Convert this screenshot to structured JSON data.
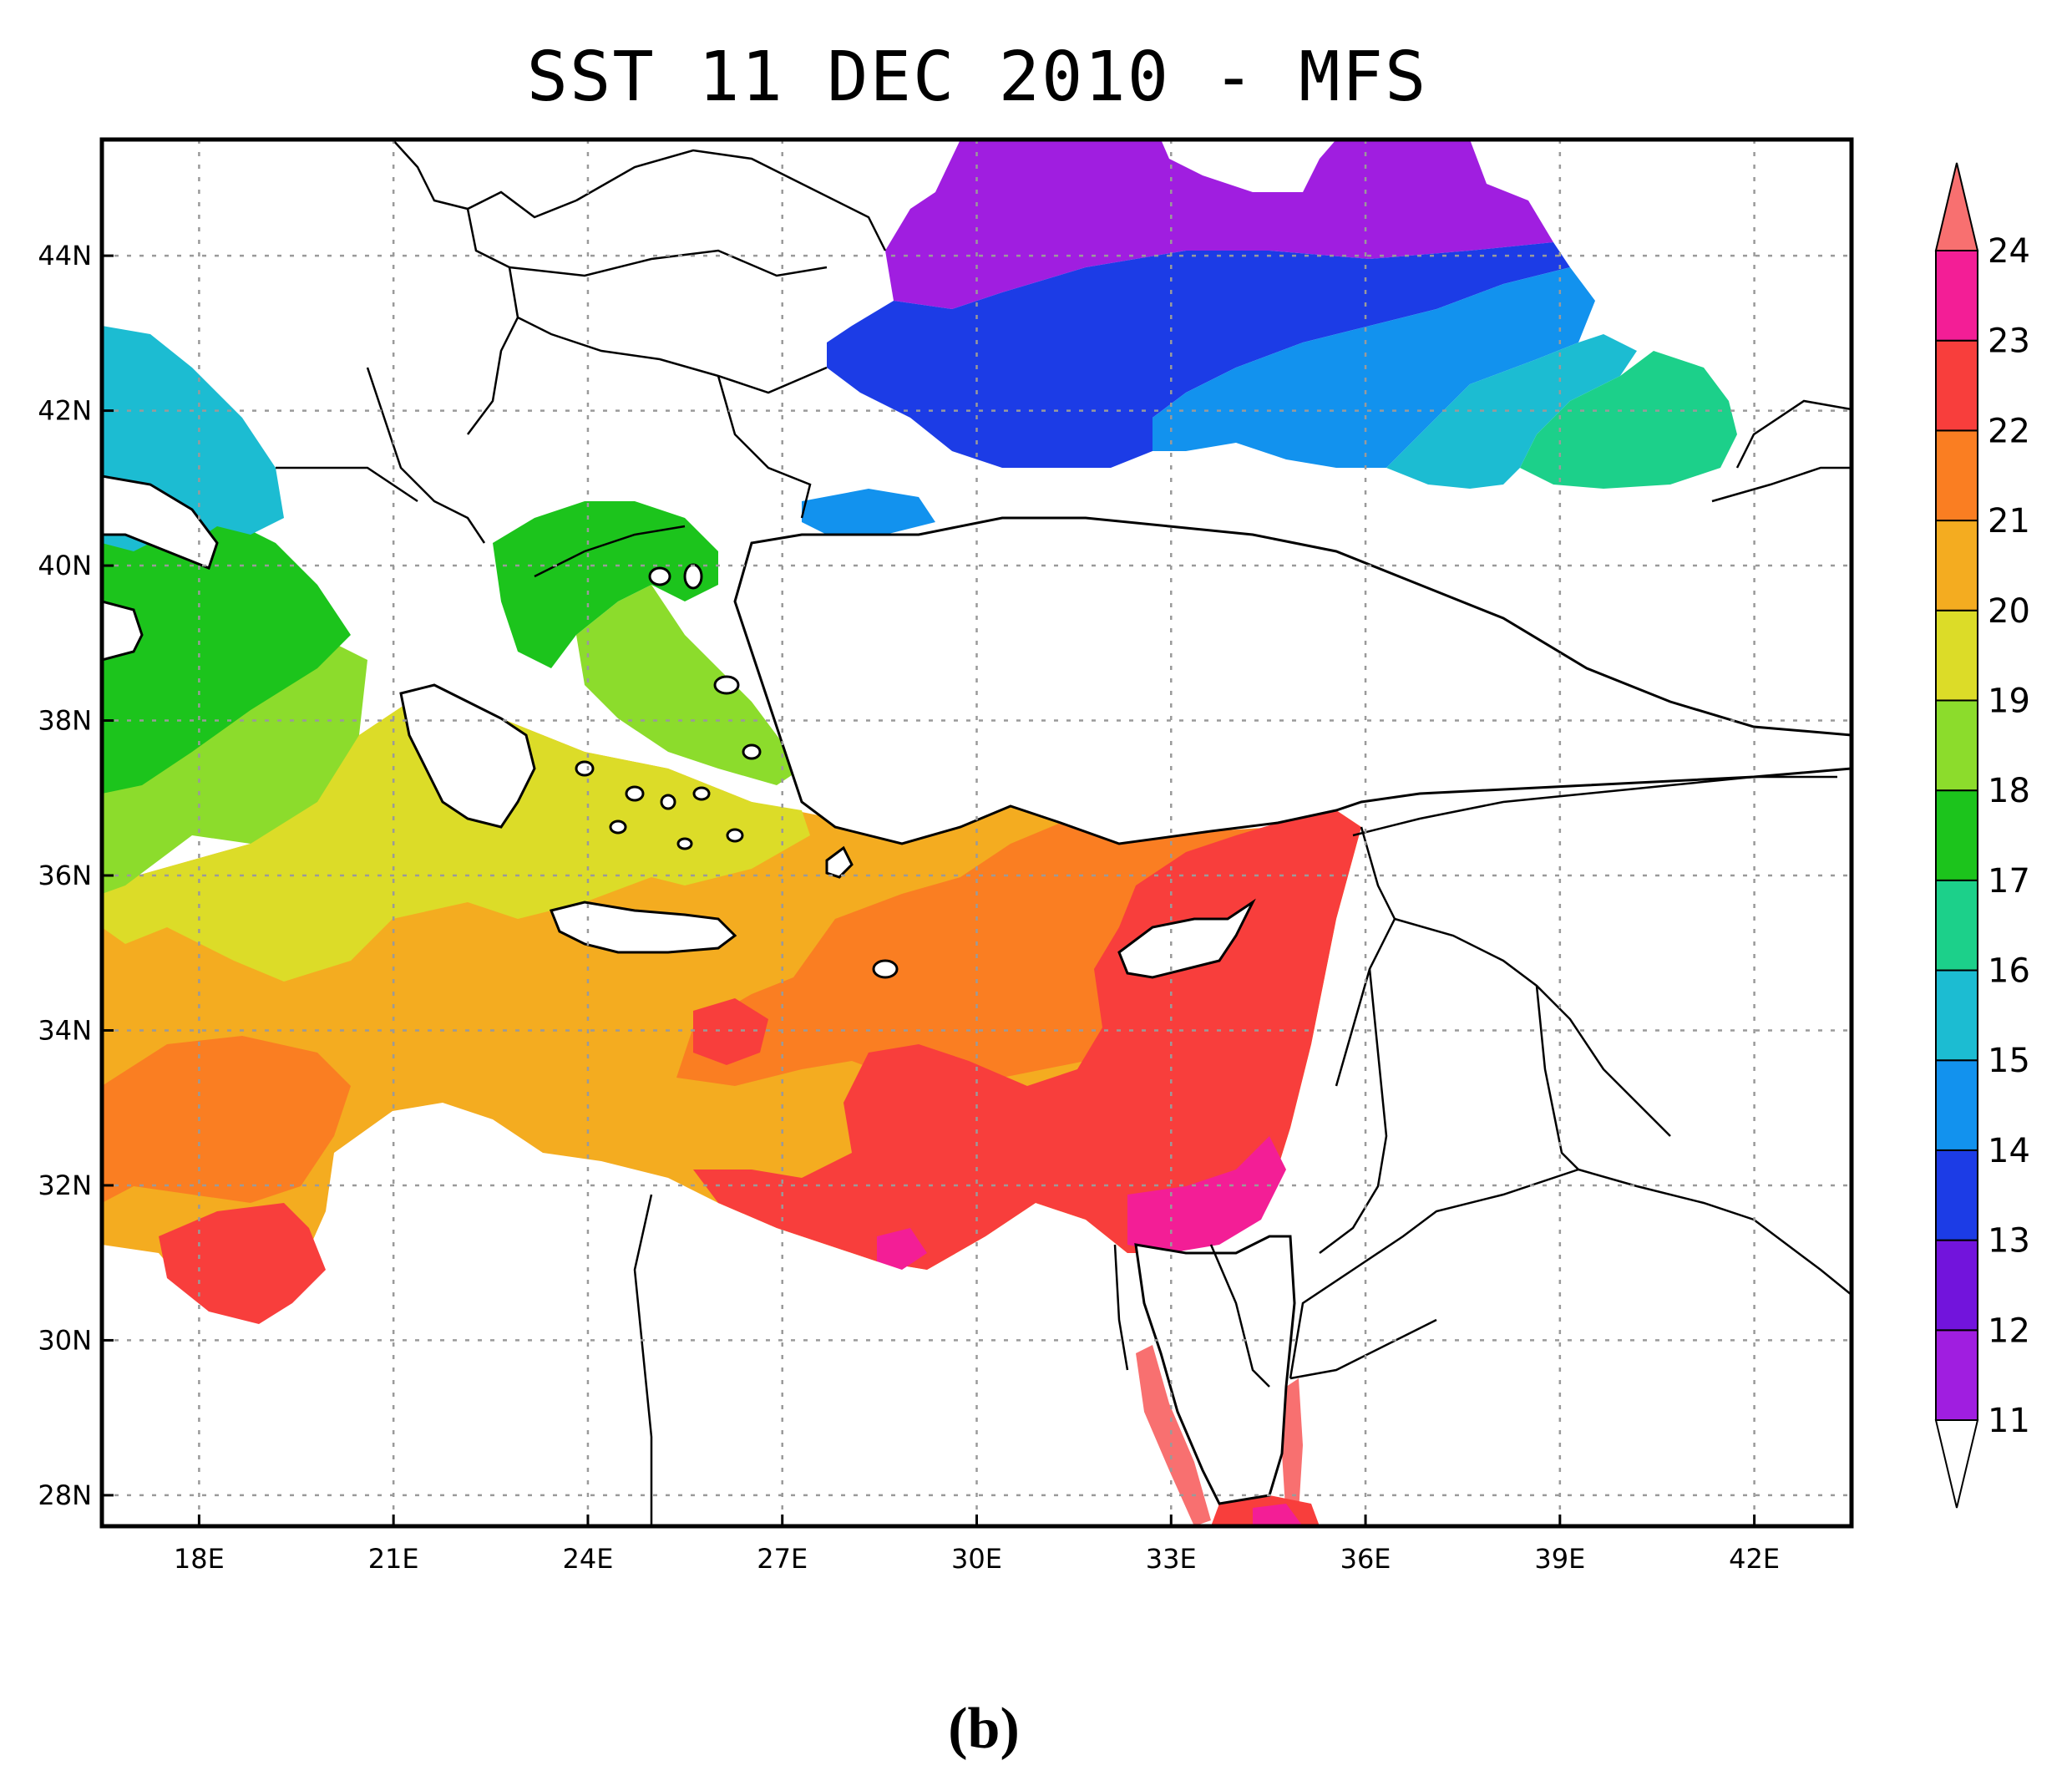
{
  "title": "SST 11 DEC 2010 - MFS",
  "caption": "(b)",
  "map": {
    "type": "filled contour map",
    "variable": "sea surface temperature",
    "region": "Eastern Mediterranean and Black Sea",
    "lon_range": [
      16.5,
      43.5
    ],
    "lat_range": [
      27.6,
      45.5
    ],
    "x_ticks": [
      {
        "lon": 18,
        "label": "18E"
      },
      {
        "lon": 21,
        "label": "21E"
      },
      {
        "lon": 24,
        "label": "24E"
      },
      {
        "lon": 27,
        "label": "27E"
      },
      {
        "lon": 30,
        "label": "30E"
      },
      {
        "lon": 33,
        "label": "33E"
      },
      {
        "lon": 36,
        "label": "36E"
      },
      {
        "lon": 39,
        "label": "39E"
      },
      {
        "lon": 42,
        "label": "42E"
      }
    ],
    "y_ticks": [
      {
        "lat": 44,
        "label": "44N"
      },
      {
        "lat": 42,
        "label": "42N"
      },
      {
        "lat": 40,
        "label": "40N"
      },
      {
        "lat": 38,
        "label": "38N"
      },
      {
        "lat": 36,
        "label": "36N"
      },
      {
        "lat": 34,
        "label": "34N"
      },
      {
        "lat": 32,
        "label": "32N"
      },
      {
        "lat": 30,
        "label": "30N"
      },
      {
        "lat": 28,
        "label": "28N"
      }
    ],
    "grid": true,
    "grid_style": "dotted",
    "land_color": "#ffffff",
    "coastline_color": "#000000"
  },
  "colorbar": {
    "orientation": "vertical",
    "placement": "right",
    "labels": [
      "11",
      "12",
      "13",
      "14",
      "15",
      "16",
      "17",
      "18",
      "19",
      "20",
      "21",
      "22",
      "23",
      "24"
    ],
    "colors": [
      "#a01ee0",
      "#7214dc",
      "#1c3ce6",
      "#1292ee",
      "#1cbcd2",
      "#1cd08a",
      "#1cc41c",
      "#8cdc2c",
      "#dcdc28",
      "#f4ac20",
      "#fa7e22",
      "#f83e3c",
      "#f31e96",
      "#f87070"
    ],
    "lower_extend_color": "#ffffff",
    "upper_extend_color": "#f87070"
  },
  "regions": [
    {
      "name": "black-sea-north",
      "value_range": "11-12",
      "color": "#a01ee0"
    },
    {
      "name": "black-sea-central",
      "value_range": "12-13",
      "color": "#1c3ce6"
    },
    {
      "name": "black-sea-east",
      "value_range": "13-14",
      "color": "#1292ee"
    },
    {
      "name": "black-sea-southeast",
      "value_range": "15-16",
      "color": "#1cd08a"
    },
    {
      "name": "adriatic",
      "value_range": "14-15",
      "color": "#1cbcd2"
    },
    {
      "name": "ionian-north",
      "value_range": "16-17",
      "color": "#1cc41c"
    },
    {
      "name": "aegean-north",
      "value_range": "16-17",
      "color": "#1cc41c"
    },
    {
      "name": "ionian-south",
      "value_range": "18-19",
      "color": "#dcdc28"
    },
    {
      "name": "levantine-central",
      "value_range": "19-21",
      "color": "#f4ac20"
    },
    {
      "name": "levantine-east",
      "value_range": "21-22",
      "color": "#f83e3c"
    },
    {
      "name": "egypt-coast",
      "value_range": "22-23",
      "color": "#f31e96"
    }
  ]
}
